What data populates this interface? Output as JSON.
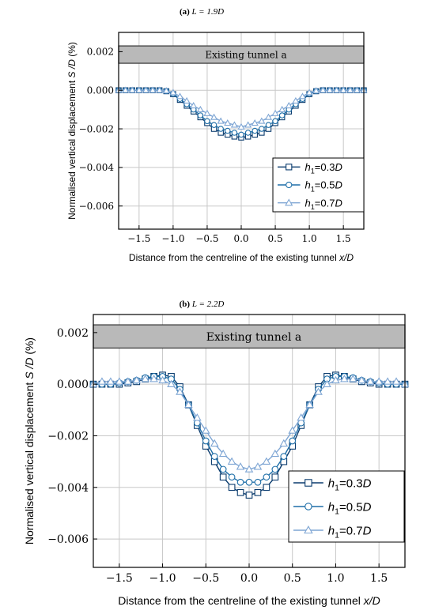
{
  "chart_data": [
    {
      "type": "line",
      "title": "(a) L = 1.9D",
      "title_parts": {
        "label": "(a)",
        "eq": "L = 1.9D"
      },
      "xlabel": "Distance from the centreline of the existing tunnel x/D",
      "ylabel": "Normalised vertical displacement S /D (%)",
      "xlim": [
        -1.8,
        1.8
      ],
      "ylim": [
        -0.0072,
        0.003
      ],
      "xticks": [
        -1.5,
        -1.0,
        -0.5,
        0.0,
        0.5,
        1.0,
        1.5
      ],
      "xtick_labels": [
        "-1.5",
        "-1.0",
        "-0.5",
        "0.0",
        "0.5",
        "1.0",
        "1.5"
      ],
      "yticks": [
        0.002,
        0.0,
        -0.002,
        -0.004,
        -0.006
      ],
      "ytick_labels": [
        "0.002",
        "0.000",
        "-0.002",
        "-0.004",
        "-0.006"
      ],
      "grid": true,
      "legend_position": "lower-right",
      "annotation": "Existing tunnel a",
      "band_range": [
        0.0014,
        0.0023
      ],
      "x": [
        -1.8,
        -1.7,
        -1.6,
        -1.5,
        -1.4,
        -1.3,
        -1.2,
        -1.1,
        -1.0,
        -0.9,
        -0.8,
        -0.7,
        -0.6,
        -0.5,
        -0.4,
        -0.3,
        -0.2,
        -0.1,
        0.0,
        0.1,
        0.2,
        0.3,
        0.4,
        0.5,
        0.6,
        0.7,
        0.8,
        0.9,
        1.0,
        1.1,
        1.2,
        1.3,
        1.4,
        1.5,
        1.6,
        1.7,
        1.8
      ],
      "series": [
        {
          "name": "h1=0.3D",
          "name_parts": [
            "h",
            "1",
            "=0.3",
            "D"
          ],
          "color": "#0b3c6e",
          "marker": "square",
          "values": [
            0.0,
            0.0,
            0.0,
            0.0,
            0.0,
            0.0,
            0.0,
            -5e-05,
            -0.0002,
            -0.0005,
            -0.0008,
            -0.0011,
            -0.0014,
            -0.0017,
            -0.002,
            -0.0022,
            -0.0023,
            -0.0024,
            -0.00245,
            -0.0024,
            -0.0023,
            -0.0022,
            -0.002,
            -0.0017,
            -0.0014,
            -0.0011,
            -0.0008,
            -0.0005,
            -0.0002,
            -5e-05,
            0.0,
            0.0,
            0.0,
            0.0,
            0.0,
            0.0,
            0.0
          ]
        },
        {
          "name": "h1=0.5D",
          "name_parts": [
            "h",
            "1",
            "=0.5",
            "D"
          ],
          "color": "#1f6fa8",
          "marker": "circle",
          "values": [
            0.0,
            0.0,
            0.0,
            0.0,
            0.0,
            0.0,
            0.0,
            -4e-05,
            -0.00018,
            -0.00045,
            -0.00072,
            -0.001,
            -0.0013,
            -0.0016,
            -0.0018,
            -0.002,
            -0.0021,
            -0.0022,
            -0.0023,
            -0.0022,
            -0.0021,
            -0.002,
            -0.0018,
            -0.0016,
            -0.0013,
            -0.001,
            -0.00072,
            -0.00045,
            -0.00018,
            -4e-05,
            0.0,
            0.0,
            0.0,
            0.0,
            0.0,
            0.0,
            0.0
          ]
        },
        {
          "name": "h1=0.7D",
          "name_parts": [
            "h",
            "1",
            "=0.7",
            "D"
          ],
          "color": "#7fa6d4",
          "marker": "triangle",
          "values": [
            0.0,
            0.0,
            0.0,
            0.0,
            0.0,
            0.0,
            0.0,
            -3e-05,
            -0.00012,
            -0.00032,
            -0.00055,
            -0.0008,
            -0.001,
            -0.0012,
            -0.0014,
            -0.0016,
            -0.0017,
            -0.0018,
            -0.0019,
            -0.0018,
            -0.0017,
            -0.0016,
            -0.0014,
            -0.0012,
            -0.001,
            -0.0008,
            -0.00055,
            -0.00032,
            -0.00012,
            -3e-05,
            0.0,
            0.0,
            0.0,
            0.0,
            0.0,
            0.0,
            0.0
          ]
        }
      ]
    },
    {
      "type": "line",
      "title": "(b) L = 2.2D",
      "title_parts": {
        "label": "(b)",
        "eq": "L = 2.2D"
      },
      "xlabel": "Distance from the centreline of the existing tunnel x/D",
      "ylabel": "Normalised vertical displacement S /D (%)",
      "xlim": [
        -1.8,
        1.8
      ],
      "ylim": [
        -0.0071,
        0.0027
      ],
      "xticks": [
        -1.5,
        -1.0,
        -0.5,
        0.0,
        0.5,
        1.0,
        1.5
      ],
      "xtick_labels": [
        "-1.5",
        "-1.0",
        "-0.5",
        "0.0",
        "0.5",
        "1.0",
        "1.5"
      ],
      "yticks": [
        0.002,
        0.0,
        -0.002,
        -0.004,
        -0.006
      ],
      "ytick_labels": [
        "0.002",
        "0.000",
        "-0.002",
        "-0.004",
        "-0.006"
      ],
      "grid": true,
      "legend_position": "lower-right",
      "annotation": "Existing tunnel a",
      "band_range": [
        0.0014,
        0.0023
      ],
      "x": [
        -1.8,
        -1.7,
        -1.6,
        -1.5,
        -1.4,
        -1.3,
        -1.2,
        -1.1,
        -1.0,
        -0.9,
        -0.8,
        -0.7,
        -0.6,
        -0.5,
        -0.4,
        -0.3,
        -0.2,
        -0.1,
        0.0,
        0.1,
        0.2,
        0.3,
        0.4,
        0.5,
        0.6,
        0.7,
        0.8,
        0.9,
        1.0,
        1.1,
        1.2,
        1.3,
        1.4,
        1.5,
        1.6,
        1.7,
        1.8
      ],
      "series": [
        {
          "name": "h1=0.3D",
          "name_parts": [
            "h",
            "1",
            "=0.3",
            "D"
          ],
          "color": "#0b3c6e",
          "marker": "square",
          "values": [
            0.0,
            0.0,
            0.0,
            0.0,
            5e-05,
            0.0001,
            0.0002,
            0.0003,
            0.00035,
            0.0003,
            -0.0001,
            -0.0008,
            -0.0016,
            -0.0024,
            -0.003,
            -0.0036,
            -0.004,
            -0.0042,
            -0.0043,
            -0.0042,
            -0.004,
            -0.0036,
            -0.003,
            -0.0024,
            -0.0016,
            -0.0008,
            -0.0001,
            0.0003,
            0.00035,
            0.0003,
            0.0002,
            0.0001,
            5e-05,
            0.0,
            0.0,
            0.0,
            0.0
          ]
        },
        {
          "name": "h1=0.5D",
          "name_parts": [
            "h",
            "1",
            "=0.5",
            "D"
          ],
          "color": "#1f6fa8",
          "marker": "circle",
          "values": [
            0.0,
            0.0,
            0.0,
            5e-05,
            0.0001,
            0.00015,
            0.00025,
            0.0003,
            0.0003,
            0.0002,
            -0.0002,
            -0.0008,
            -0.0015,
            -0.0022,
            -0.0028,
            -0.0033,
            -0.0036,
            -0.0038,
            -0.0038,
            -0.0038,
            -0.0036,
            -0.0033,
            -0.0028,
            -0.0022,
            -0.0015,
            -0.0008,
            -0.0002,
            0.0002,
            0.0003,
            0.0003,
            0.00025,
            0.00015,
            0.0001,
            5e-05,
            0.0,
            0.0,
            0.0
          ]
        },
        {
          "name": "h1=0.7D",
          "name_parts": [
            "h",
            "1",
            "=0.7",
            "D"
          ],
          "color": "#7fa6d4",
          "marker": "triangle",
          "values": [
            0.0,
            0.0001,
            0.0001,
            0.0001,
            0.0001,
            0.00015,
            0.0002,
            0.0002,
            0.00015,
            0.0,
            -0.0003,
            -0.0008,
            -0.0013,
            -0.0018,
            -0.0023,
            -0.0027,
            -0.003,
            -0.0032,
            -0.0033,
            -0.0032,
            -0.003,
            -0.0027,
            -0.0023,
            -0.0018,
            -0.0013,
            -0.0008,
            -0.0003,
            0.0,
            0.00015,
            0.0002,
            0.0002,
            0.00015,
            0.0001,
            0.0001,
            0.0001,
            0.0001,
            0.0
          ]
        }
      ]
    }
  ]
}
